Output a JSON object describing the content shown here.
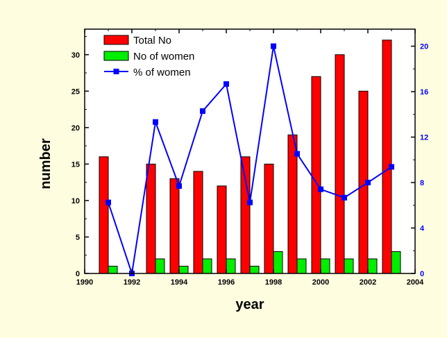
{
  "chart_data": {
    "type": "bar",
    "x": [
      1991,
      1992,
      1993,
      1994,
      1995,
      1996,
      1997,
      1998,
      1999,
      2000,
      2001,
      2002,
      2003
    ],
    "xlabel": "year",
    "ylabel": "number",
    "xlim": [
      1990,
      2004
    ],
    "ylim": [
      0,
      33.5
    ],
    "y2lim": [
      0,
      21.5
    ],
    "xticks": [
      1990,
      1992,
      1994,
      1996,
      1998,
      2000,
      2002,
      2004
    ],
    "yticks": [
      0,
      5,
      10,
      15,
      20,
      25,
      30
    ],
    "y2ticks": [
      0,
      4,
      8,
      12,
      16,
      20
    ],
    "legend_position": "top-left",
    "series": [
      {
        "name": "Total No",
        "kind": "bar",
        "axis": "left",
        "color": "#ff0000",
        "values": [
          16,
          0,
          15,
          13,
          14,
          12,
          16,
          15,
          19,
          27,
          30,
          25,
          32
        ]
      },
      {
        "name": "No of women",
        "kind": "bar",
        "axis": "left",
        "color": "#00ee00",
        "values": [
          1,
          0,
          2,
          1,
          2,
          2,
          1,
          3,
          2,
          2,
          2,
          2,
          3
        ]
      },
      {
        "name": "% of women",
        "kind": "line",
        "axis": "right",
        "color": "#0000ff",
        "values": [
          6.25,
          0,
          13.33,
          7.69,
          14.29,
          16.67,
          6.25,
          20,
          10.53,
          7.41,
          6.67,
          8,
          9.38
        ]
      }
    ]
  },
  "colors": {
    "background": "#fffde0",
    "plot_background": "#ffffff",
    "right_axis": "#0000ff"
  }
}
